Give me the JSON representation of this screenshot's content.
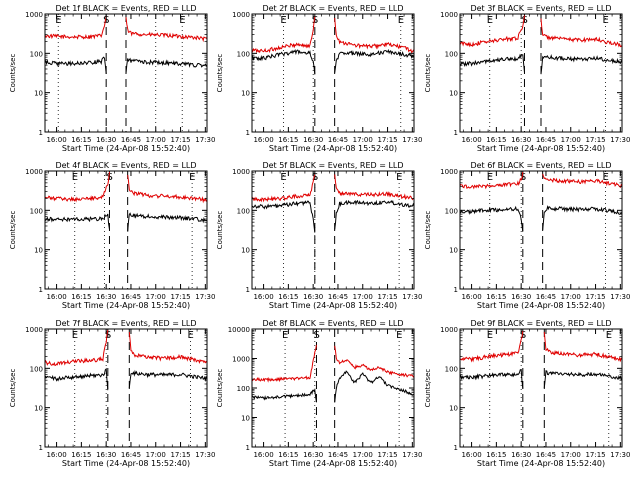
{
  "x_label": "Start Time (24-Apr-08 15:52:40)",
  "y_label": "Counts/sec",
  "x_ticks": [
    "16:00",
    "16:15",
    "16:30",
    "16:45",
    "17:00",
    "17:15",
    "17:30"
  ],
  "x_tick_minutes": [
    0,
    15,
    30,
    45,
    60,
    75,
    90
  ],
  "x_range_minutes": [
    -7,
    91
  ],
  "markers": {
    "E": "E",
    "S": "S"
  },
  "colors": {
    "events": "#000000",
    "lld": "#e00000"
  },
  "chart_data": [
    {
      "type": "line",
      "title": "Det 1f BLACK = Events, RED = LLD",
      "yscale": "log",
      "ylim": [
        1,
        1000
      ],
      "y_ticks": [
        "1",
        "10",
        "100",
        "1000"
      ],
      "gap_minutes": [
        30,
        42
      ],
      "dashed_minutes": [
        30,
        42
      ],
      "dotted_minutes": [
        1,
        60,
        76
      ],
      "series": [
        {
          "color": "#e00000",
          "x": [
            -7,
            0,
            10,
            20,
            27,
            29,
            30,
            42,
            43,
            45,
            55,
            65,
            75,
            85,
            91
          ],
          "y": [
            280,
            270,
            260,
            265,
            280,
            500,
            900,
            800,
            380,
            320,
            300,
            290,
            270,
            250,
            230
          ]
        },
        {
          "color": "#000000",
          "x": [
            -7,
            0,
            10,
            20,
            27,
            29,
            30,
            42,
            43,
            45,
            55,
            65,
            75,
            85,
            91
          ],
          "y": [
            60,
            55,
            55,
            58,
            62,
            80,
            30,
            30,
            70,
            65,
            60,
            58,
            55,
            50,
            48
          ]
        }
      ]
    },
    {
      "type": "line",
      "title": "Det 2f BLACK = Events, RED = LLD",
      "yscale": "log",
      "ylim": [
        1,
        1000
      ],
      "y_ticks": [
        "1",
        "10",
        "100",
        "1000"
      ],
      "gap_minutes": [
        31,
        43
      ],
      "dashed_minutes": [
        31,
        43
      ],
      "dotted_minutes": [
        12,
        30,
        83
      ],
      "series": [
        {
          "color": "#e00000",
          "x": [
            -7,
            0,
            10,
            20,
            28,
            30,
            31,
            43,
            44,
            46,
            55,
            65,
            75,
            85,
            91
          ],
          "y": [
            120,
            115,
            140,
            170,
            150,
            400,
            900,
            800,
            300,
            200,
            160,
            150,
            170,
            140,
            110
          ]
        },
        {
          "color": "#000000",
          "x": [
            -7,
            0,
            10,
            20,
            28,
            30,
            31,
            43,
            44,
            46,
            55,
            65,
            75,
            85,
            91
          ],
          "y": [
            75,
            75,
            95,
            110,
            100,
            60,
            30,
            30,
            60,
            105,
            100,
            95,
            110,
            95,
            80
          ]
        }
      ]
    },
    {
      "type": "line",
      "title": "Det 3f BLACK = Events, RED = LLD",
      "yscale": "log",
      "ylim": [
        1,
        1000
      ],
      "y_ticks": [
        "1",
        "10",
        "100",
        "1000"
      ],
      "gap_minutes": [
        32,
        42
      ],
      "dashed_minutes": [
        32,
        42
      ],
      "dotted_minutes": [
        11,
        30,
        81
      ],
      "series": [
        {
          "color": "#e00000",
          "x": [
            -7,
            0,
            10,
            20,
            28,
            31,
            32,
            42,
            43,
            45,
            55,
            65,
            75,
            85,
            91
          ],
          "y": [
            180,
            170,
            200,
            230,
            250,
            500,
            900,
            800,
            300,
            260,
            230,
            220,
            230,
            180,
            160
          ]
        },
        {
          "color": "#000000",
          "x": [
            -7,
            0,
            10,
            20,
            28,
            31,
            32,
            42,
            43,
            45,
            55,
            65,
            75,
            85,
            91
          ],
          "y": [
            55,
            55,
            65,
            70,
            75,
            90,
            30,
            30,
            80,
            80,
            75,
            70,
            75,
            65,
            60
          ]
        }
      ]
    },
    {
      "type": "line",
      "title": "Det 4f BLACK = Events, RED = LLD",
      "yscale": "log",
      "ylim": [
        1,
        1000
      ],
      "y_ticks": [
        "1",
        "10",
        "100",
        "1000"
      ],
      "gap_minutes": [
        32,
        43
      ],
      "dashed_minutes": [
        32,
        43
      ],
      "dotted_minutes": [
        11,
        29,
        82
      ],
      "series": [
        {
          "color": "#e00000",
          "x": [
            -7,
            0,
            10,
            20,
            28,
            31,
            32,
            43,
            44,
            46,
            55,
            65,
            75,
            85,
            91
          ],
          "y": [
            210,
            200,
            190,
            200,
            220,
            500,
            900,
            800,
            350,
            280,
            240,
            230,
            220,
            200,
            180
          ]
        },
        {
          "color": "#000000",
          "x": [
            -7,
            0,
            10,
            20,
            28,
            31,
            32,
            43,
            44,
            46,
            55,
            65,
            75,
            85,
            91
          ],
          "y": [
            60,
            60,
            58,
            60,
            62,
            80,
            30,
            30,
            80,
            75,
            70,
            68,
            65,
            60,
            55
          ]
        }
      ]
    },
    {
      "type": "line",
      "title": "Det 5f BLACK = Events, RED = LLD",
      "yscale": "log",
      "ylim": [
        1,
        1000
      ],
      "y_ticks": [
        "1",
        "10",
        "100",
        "1000"
      ],
      "gap_minutes": [
        31,
        43
      ],
      "dashed_minutes": [
        31,
        43
      ],
      "dotted_minutes": [
        12,
        31,
        82
      ],
      "series": [
        {
          "color": "#e00000",
          "x": [
            -7,
            0,
            10,
            20,
            28,
            30,
            31,
            43,
            44,
            46,
            55,
            65,
            75,
            85,
            91
          ],
          "y": [
            200,
            190,
            200,
            230,
            250,
            500,
            900,
            800,
            350,
            280,
            260,
            250,
            260,
            220,
            200
          ]
        },
        {
          "color": "#000000",
          "x": [
            -7,
            0,
            10,
            20,
            28,
            30,
            31,
            43,
            44,
            46,
            55,
            65,
            75,
            85,
            91
          ],
          "y": [
            130,
            125,
            130,
            150,
            160,
            60,
            30,
            30,
            80,
            150,
            160,
            150,
            165,
            140,
            130
          ]
        }
      ]
    },
    {
      "type": "line",
      "title": "Det 6f BLACK = Events, RED = LLD",
      "yscale": "log",
      "ylim": [
        1,
        1000
      ],
      "y_ticks": [
        "1",
        "10",
        "100",
        "1000"
      ],
      "gap_minutes": [
        31,
        43
      ],
      "dashed_minutes": [
        31,
        43
      ],
      "dotted_minutes": [
        11,
        30,
        81
      ],
      "series": [
        {
          "color": "#e00000",
          "x": [
            -7,
            0,
            10,
            20,
            28,
            30,
            31,
            43,
            44,
            46,
            55,
            65,
            75,
            85,
            91
          ],
          "y": [
            420,
            400,
            420,
            450,
            480,
            600,
            900,
            800,
            650,
            600,
            560,
            540,
            560,
            480,
            420
          ]
        },
        {
          "color": "#000000",
          "x": [
            -7,
            0,
            10,
            20,
            28,
            30,
            31,
            43,
            44,
            46,
            55,
            65,
            75,
            85,
            91
          ],
          "y": [
            90,
            95,
            100,
            105,
            110,
            60,
            30,
            30,
            90,
            115,
            110,
            105,
            110,
            95,
            85
          ]
        }
      ]
    },
    {
      "type": "line",
      "title": "Det 7f BLACK = Events, RED = LLD",
      "yscale": "log",
      "ylim": [
        1,
        1000
      ],
      "y_ticks": [
        "1",
        "10",
        "100",
        "1000"
      ],
      "gap_minutes": [
        31,
        44
      ],
      "dashed_minutes": [
        31,
        44
      ],
      "dotted_minutes": [
        11,
        30,
        81
      ],
      "series": [
        {
          "color": "#e00000",
          "x": [
            -7,
            0,
            10,
            20,
            28,
            30,
            31,
            44,
            45,
            47,
            55,
            65,
            75,
            85,
            91
          ],
          "y": [
            140,
            130,
            150,
            160,
            170,
            500,
            900,
            800,
            300,
            220,
            190,
            180,
            200,
            160,
            140
          ]
        },
        {
          "color": "#000000",
          "x": [
            -7,
            0,
            10,
            20,
            28,
            30,
            31,
            44,
            45,
            47,
            55,
            65,
            75,
            85,
            91
          ],
          "y": [
            60,
            55,
            60,
            65,
            68,
            90,
            30,
            30,
            80,
            75,
            70,
            68,
            70,
            60,
            55
          ]
        }
      ]
    },
    {
      "type": "line",
      "title": "Det 8f BLACK = Events, RED = LLD",
      "yscale": "log",
      "ylim": [
        1,
        10000
      ],
      "y_ticks": [
        "1",
        "10",
        "100",
        "1000",
        "10000"
      ],
      "gap_minutes": [
        32,
        43
      ],
      "dashed_minutes": [
        32,
        43
      ],
      "dotted_minutes": [
        13,
        31,
        82
      ],
      "series": [
        {
          "color": "#e00000",
          "x": [
            -7,
            0,
            10,
            20,
            28,
            31,
            32,
            43,
            44,
            46,
            50,
            55,
            60,
            65,
            70,
            75,
            80,
            85,
            91
          ],
          "y": [
            200,
            190,
            200,
            210,
            230,
            1500,
            3000,
            3000,
            1000,
            700,
            900,
            500,
            600,
            400,
            500,
            350,
            300,
            280,
            250
          ]
        },
        {
          "color": "#000000",
          "x": [
            -7,
            0,
            10,
            20,
            28,
            31,
            32,
            43,
            44,
            46,
            50,
            55,
            60,
            65,
            70,
            75,
            80,
            85,
            91
          ],
          "y": [
            50,
            45,
            50,
            55,
            60,
            90,
            30,
            30,
            100,
            200,
            350,
            150,
            300,
            150,
            250,
            120,
            100,
            80,
            60
          ]
        }
      ]
    },
    {
      "type": "line",
      "title": "Det 9f BLACK = Events, RED = LLD",
      "yscale": "log",
      "ylim": [
        1,
        1000
      ],
      "y_ticks": [
        "1",
        "10",
        "100",
        "1000"
      ],
      "gap_minutes": [
        31,
        44
      ],
      "dashed_minutes": [
        31,
        44
      ],
      "dotted_minutes": [
        11,
        30,
        83
      ],
      "series": [
        {
          "color": "#e00000",
          "x": [
            -7,
            0,
            10,
            20,
            28,
            30,
            31,
            44,
            45,
            47,
            55,
            65,
            75,
            85,
            91
          ],
          "y": [
            180,
            170,
            200,
            220,
            240,
            500,
            900,
            800,
            320,
            260,
            230,
            220,
            230,
            190,
            170
          ]
        },
        {
          "color": "#000000",
          "x": [
            -7,
            0,
            10,
            20,
            28,
            30,
            31,
            44,
            45,
            47,
            55,
            65,
            75,
            85,
            91
          ],
          "y": [
            60,
            60,
            65,
            68,
            70,
            90,
            30,
            30,
            80,
            75,
            72,
            70,
            72,
            60,
            55
          ]
        }
      ]
    }
  ]
}
